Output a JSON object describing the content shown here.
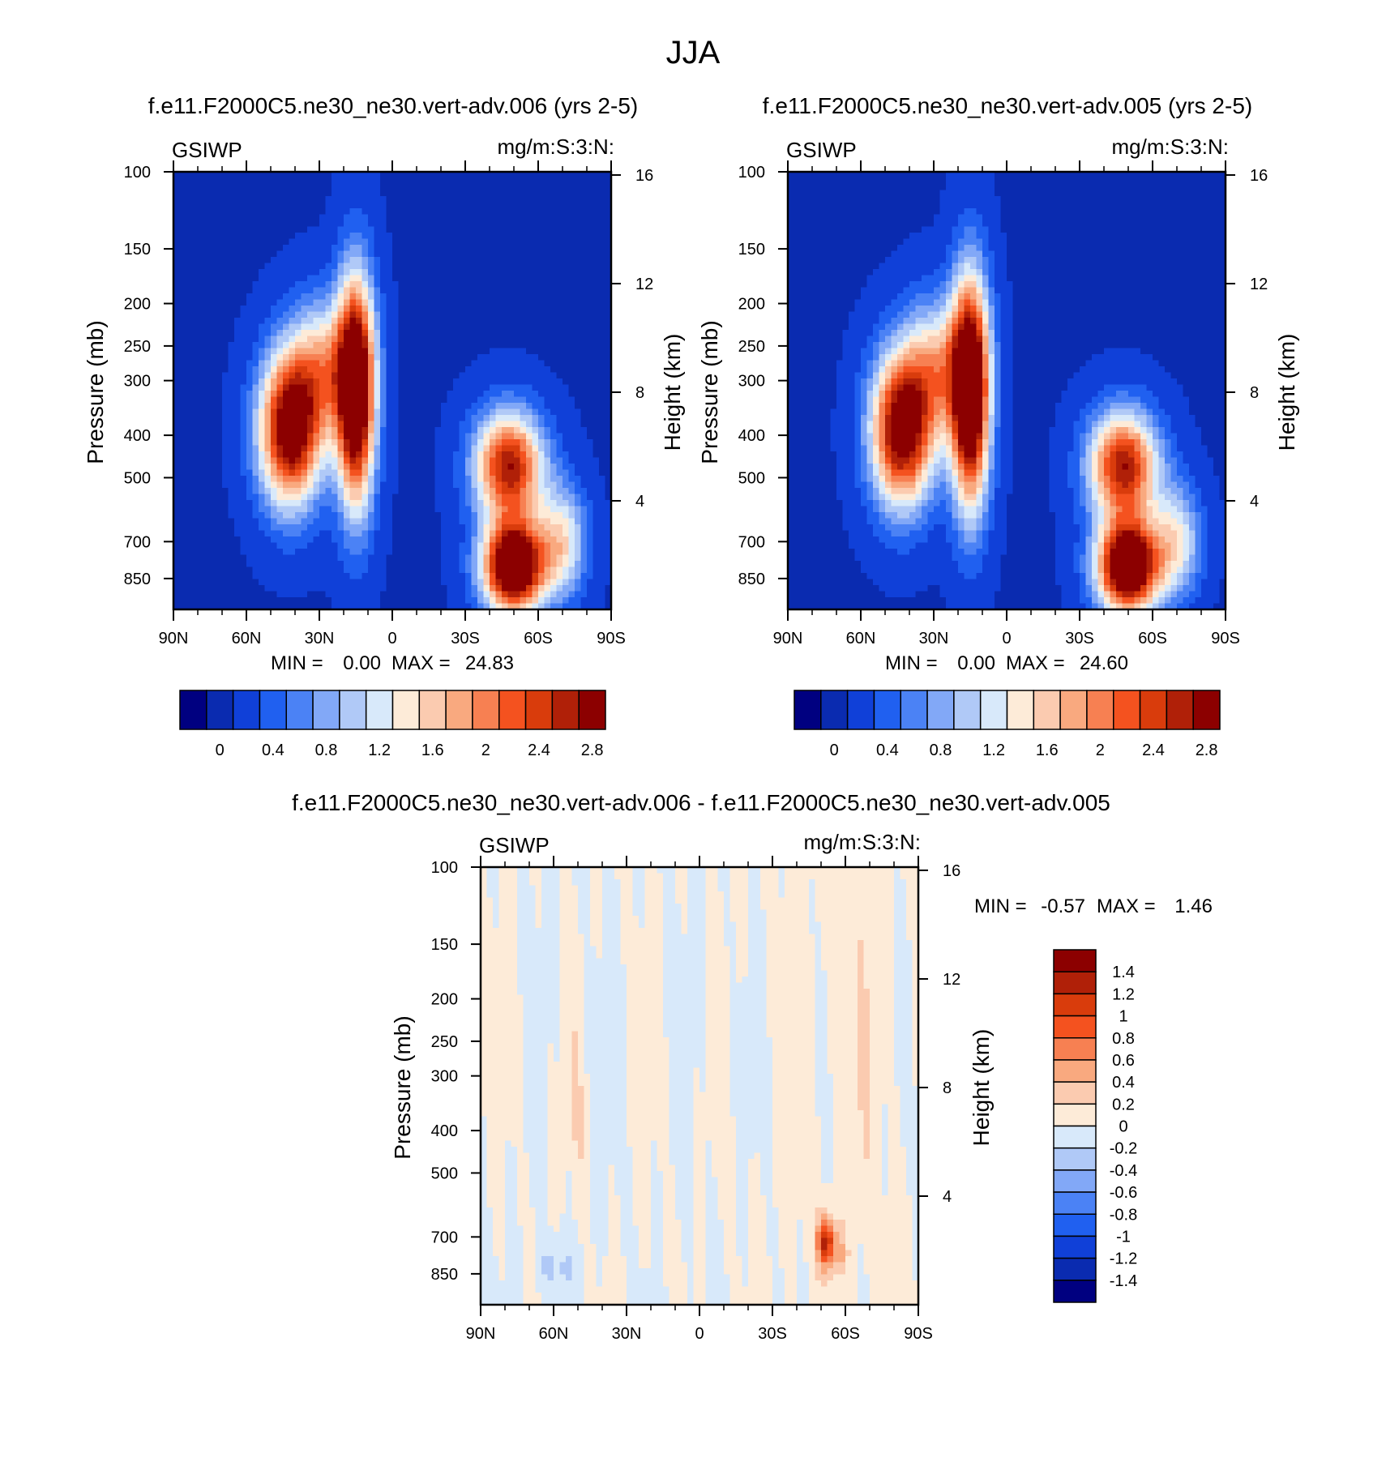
{
  "figure": {
    "title": "JJA"
  },
  "colors": {
    "abs_levels": [
      "#000080",
      "#0a2bb0",
      "#1040d8",
      "#2060f0",
      "#4b82f5",
      "#82a8f7",
      "#b0c9f7",
      "#d8e9fa",
      "#fdebd8",
      "#fbcbb0",
      "#f9a97f",
      "#f78052",
      "#f4521f",
      "#d93c0c",
      "#b02008",
      "#8c0000"
    ],
    "diff_levels": [
      "#8c0000",
      "#b02008",
      "#d93c0c",
      "#f4521f",
      "#f78052",
      "#f9a97f",
      "#fbcbb0",
      "#fdebd8",
      "#d8e9fa",
      "#b0c9f7",
      "#82a8f7",
      "#4b82f5",
      "#2060f0",
      "#1040d8",
      "#0a2bb0",
      "#000080"
    ]
  },
  "chart_data": [
    {
      "type": "heatmap",
      "title": "f.e11.F2000C5.ne30_ne30.vert-adv.006 (yrs 2-5)",
      "variable": "GSIWP",
      "units": "mg/m:S:3:N:",
      "xlabel": "",
      "ylabel": "Pressure (mb)",
      "y2label": "Height (km)",
      "x_ticks": [
        "90N",
        "60N",
        "30N",
        "0",
        "30S",
        "60S",
        "90S"
      ],
      "y_ticks": [
        "100",
        "150",
        "200",
        "250",
        "300",
        "400",
        "500",
        "700",
        "850"
      ],
      "y2_ticks": [
        "16",
        "12",
        "8",
        "4"
      ],
      "stats": {
        "min_label": "MIN =",
        "min": "0.00",
        "max_label": "MAX =",
        "max": "24.83"
      },
      "colorbar_labels": [
        "0",
        "0.4",
        "0.8",
        "1.2",
        "1.6",
        "2",
        "2.4",
        "2.8"
      ],
      "features": [
        {
          "lat": 42,
          "p": 390,
          "amp": 3.0,
          "wlat": 9,
          "wlogp": 0.28
        },
        {
          "lat": 15,
          "p": 320,
          "amp": 3.4,
          "wlat": 5.5,
          "wlogp": 0.42
        },
        {
          "lat": -50,
          "p": 800,
          "amp": 3.6,
          "wlat": 9,
          "wlogp": 0.17
        },
        {
          "lat": -48,
          "p": 470,
          "amp": 2.6,
          "wlat": 10,
          "wlogp": 0.2
        },
        {
          "lat": 28,
          "p": 280,
          "amp": 1.4,
          "wlat": 10,
          "wlogp": 0.25
        },
        {
          "lat": -70,
          "p": 700,
          "amp": 1.3,
          "wlat": 7,
          "wlogp": 0.2
        }
      ]
    },
    {
      "type": "heatmap",
      "title": "f.e11.F2000C5.ne30_ne30.vert-adv.005 (yrs 2-5)",
      "variable": "GSIWP",
      "units": "mg/m:S:3:N:",
      "xlabel": "",
      "ylabel": "Pressure (mb)",
      "y2label": "Height (km)",
      "x_ticks": [
        "90N",
        "60N",
        "30N",
        "0",
        "30S",
        "60S",
        "90S"
      ],
      "y_ticks": [
        "100",
        "150",
        "200",
        "250",
        "300",
        "400",
        "500",
        "700",
        "850"
      ],
      "y2_ticks": [
        "16",
        "12",
        "8",
        "4"
      ],
      "stats": {
        "min_label": "MIN =",
        "min": "0.00",
        "max_label": "MAX =",
        "max": "24.60"
      },
      "colorbar_labels": [
        "0",
        "0.4",
        "0.8",
        "1.2",
        "1.6",
        "2",
        "2.4",
        "2.8"
      ],
      "features": [
        {
          "lat": 43,
          "p": 390,
          "amp": 3.0,
          "wlat": 9,
          "wlogp": 0.28
        },
        {
          "lat": 15,
          "p": 320,
          "amp": 3.5,
          "wlat": 5.5,
          "wlogp": 0.42
        },
        {
          "lat": -50,
          "p": 800,
          "amp": 3.6,
          "wlat": 9,
          "wlogp": 0.17
        },
        {
          "lat": -48,
          "p": 470,
          "amp": 2.6,
          "wlat": 10,
          "wlogp": 0.2
        },
        {
          "lat": 28,
          "p": 280,
          "amp": 1.4,
          "wlat": 10,
          "wlogp": 0.25
        },
        {
          "lat": -70,
          "p": 700,
          "amp": 1.2,
          "wlat": 7,
          "wlogp": 0.2
        }
      ]
    },
    {
      "type": "heatmap",
      "title": "f.e11.F2000C5.ne30_ne30.vert-adv.006 - f.e11.F2000C5.ne30_ne30.vert-adv.005",
      "variable": "GSIWP",
      "units": "mg/m:S:3:N:",
      "xlabel": "",
      "ylabel": "Pressure (mb)",
      "y2label": "Height (km)",
      "x_ticks": [
        "90N",
        "60N",
        "30N",
        "0",
        "30S",
        "60S",
        "90S"
      ],
      "y_ticks": [
        "100",
        "150",
        "200",
        "250",
        "300",
        "400",
        "500",
        "700",
        "850"
      ],
      "y2_ticks": [
        "16",
        "12",
        "8",
        "4"
      ],
      "stats": {
        "min_label": "MIN =",
        "min": "-0.57",
        "max_label": "MAX =",
        "max": "1.46"
      },
      "colorbar_labels": [
        "1.4",
        "1.2",
        "1",
        "0.8",
        "0.6",
        "0.4",
        "0.2",
        "0",
        "-0.2",
        "-0.4",
        "-0.6",
        "-0.8",
        "-1",
        "-1.2",
        "-1.4"
      ],
      "features": [
        {
          "lat": -52,
          "p": 720,
          "amp": 1.2,
          "wlat": 2.5,
          "wlogp": 0.09
        },
        {
          "lat": -58,
          "p": 760,
          "amp": 0.3,
          "wlat": 2,
          "wlogp": 0.08
        },
        {
          "lat": 50,
          "p": 400,
          "amp": 0.15,
          "wlat": 1.5,
          "wlogp": 0.3
        },
        {
          "lat": 60,
          "p": 820,
          "amp": -0.25,
          "wlat": 6,
          "wlogp": 0.1
        },
        {
          "lat": -60,
          "p": 300,
          "amp": 0.1,
          "wlat": 20,
          "wlogp": 1.5
        }
      ]
    }
  ]
}
